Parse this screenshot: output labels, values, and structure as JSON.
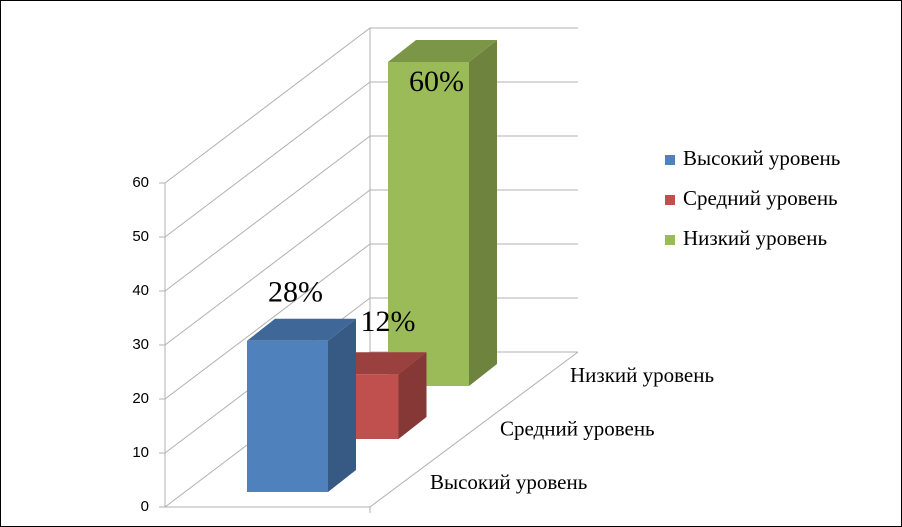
{
  "chart_data": {
    "type": "bar3d",
    "categories": [
      null
    ],
    "series": [
      {
        "name": "Высокий уровень",
        "color": "#4f81bd",
        "values": [
          28
        ],
        "value_labels": [
          "28%"
        ]
      },
      {
        "name": "Средний уровень",
        "color": "#c0504d",
        "values": [
          12
        ],
        "value_labels": [
          "12%"
        ]
      },
      {
        "name": "Низкий уровень",
        "color": "#9bbb59",
        "values": [
          60
        ],
        "value_labels": [
          "60%"
        ]
      }
    ],
    "ylim": [
      0,
      60
    ],
    "yticks": [
      0,
      10,
      20,
      30,
      40,
      50,
      60
    ],
    "grid": true,
    "legend": "right"
  }
}
